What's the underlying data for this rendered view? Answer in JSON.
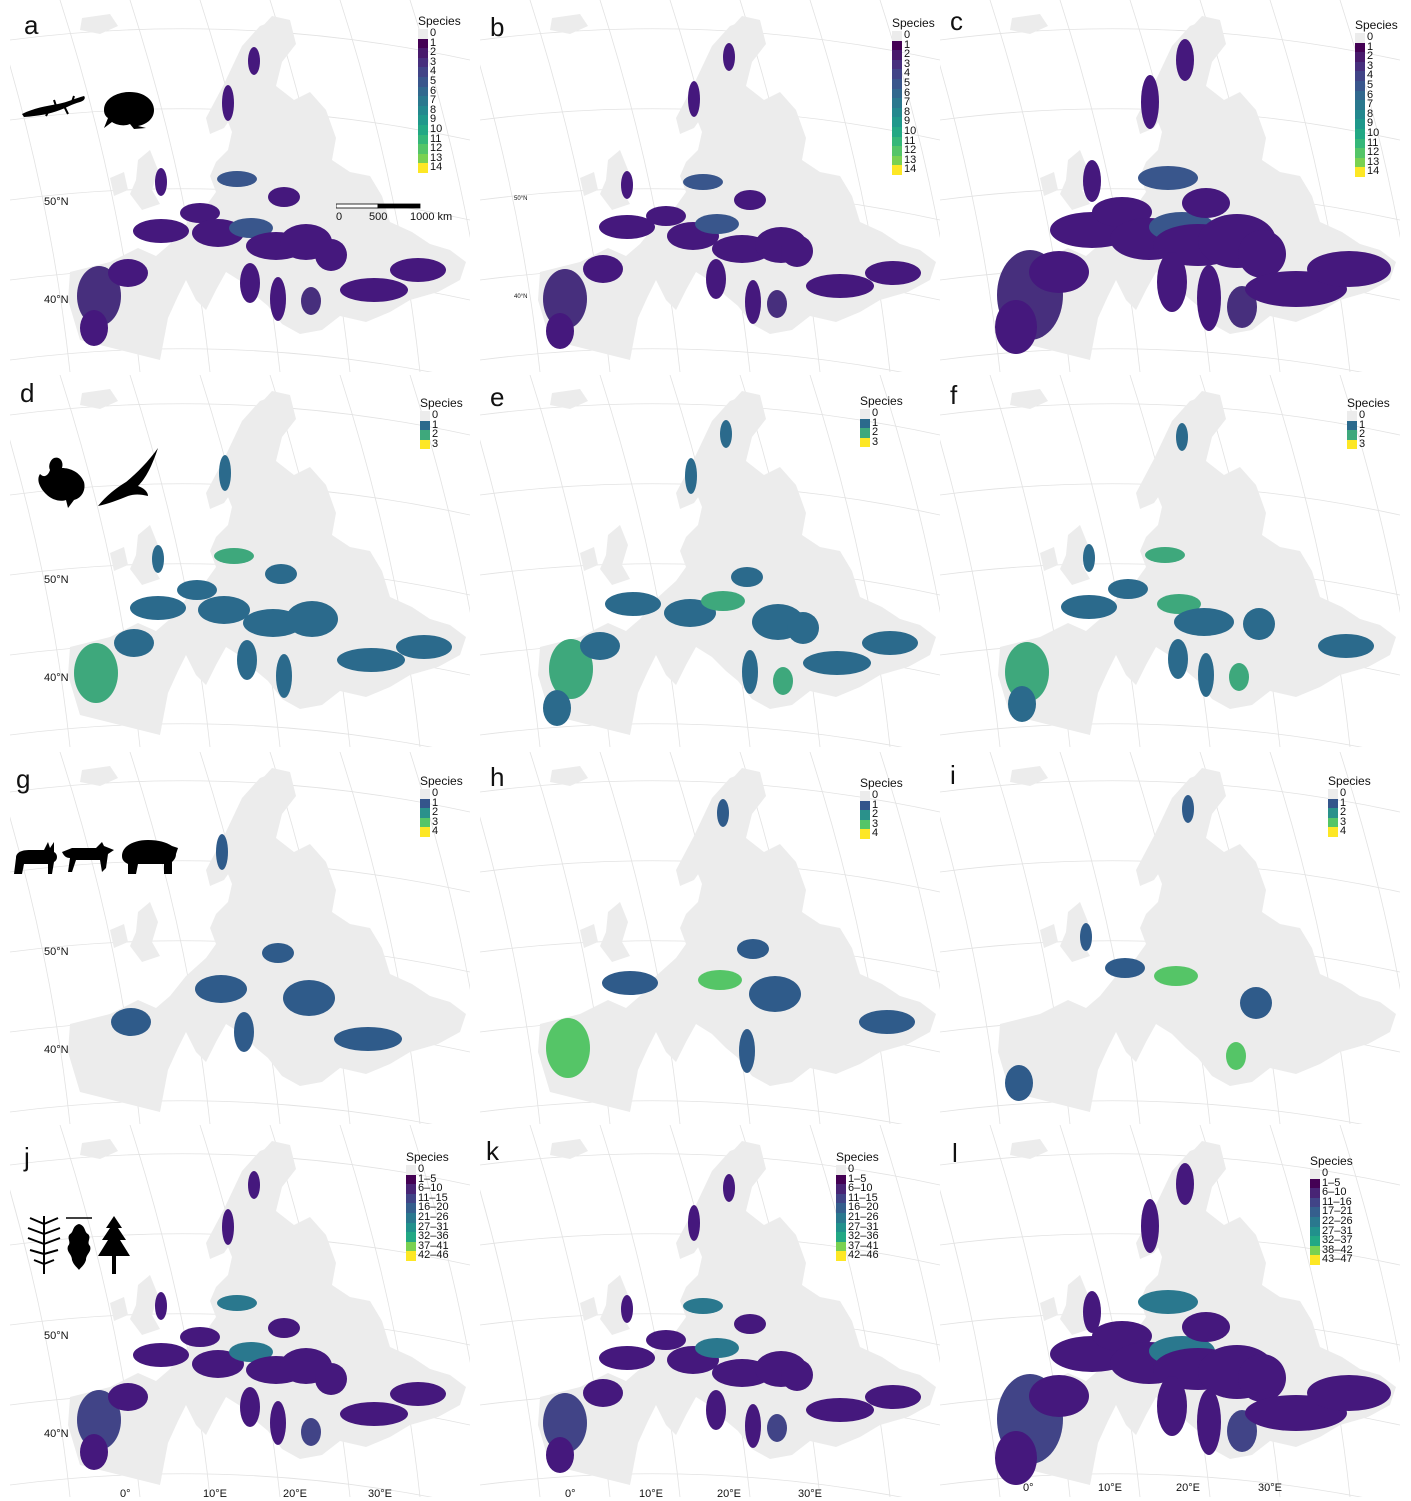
{
  "panels": [
    {
      "letter": "a",
      "legend_title": "Species",
      "legend_scale": "amph",
      "lat_labels": [
        "50°N",
        "40°N"
      ],
      "fill_color": "#45187d"
    },
    {
      "letter": "b",
      "legend_title": "Species",
      "legend_scale": "amph",
      "lat_labels": [
        "50°N",
        "40°N"
      ],
      "fill_color": "#45187d"
    },
    {
      "letter": "c",
      "legend_title": "Species",
      "legend_scale": "amph",
      "lat_labels": [],
      "fill_color": "#45187d"
    },
    {
      "letter": "d",
      "legend_title": "Species",
      "legend_scale": "bird",
      "lat_labels": [
        "50°N",
        "40°N"
      ],
      "fill_color": "#2b6a8c"
    },
    {
      "letter": "e",
      "legend_title": "Species",
      "legend_scale": "bird",
      "lat_labels": [],
      "fill_color": "#2b6a8c"
    },
    {
      "letter": "f",
      "legend_title": "Species",
      "legend_scale": "bird",
      "lat_labels": [],
      "fill_color": "#2b6a8c"
    },
    {
      "letter": "g",
      "legend_title": "Species",
      "legend_scale": "mammal",
      "lat_labels": [
        "50°N",
        "40°N"
      ],
      "fill_color": "#2f5b8a"
    },
    {
      "letter": "h",
      "legend_title": "Species",
      "legend_scale": "mammal",
      "lat_labels": [],
      "fill_color": "#2f5b8a"
    },
    {
      "letter": "i",
      "legend_title": "Species",
      "legend_scale": "mammal",
      "lat_labels": [],
      "fill_color": "#2f5b8a"
    },
    {
      "letter": "j",
      "legend_title": "Species",
      "legend_scale": "tree_j",
      "lat_labels": [
        "50°N",
        "40°N"
      ],
      "fill_color": "#45187d"
    },
    {
      "letter": "k",
      "legend_title": "Species",
      "legend_scale": "tree_j",
      "lat_labels": [],
      "fill_color": "#45187d"
    },
    {
      "letter": "l",
      "legend_title": "Species",
      "legend_scale": "tree_l",
      "lat_labels": [],
      "fill_color": "#45187d"
    }
  ],
  "legend_scales": {
    "amph": {
      "labels": [
        "0",
        "1",
        "2",
        "3",
        "4",
        "5",
        "6",
        "7",
        "8",
        "9",
        "10",
        "11",
        "12",
        "13",
        "14"
      ],
      "colors": [
        "#ececec",
        "#440154",
        "#481a6c",
        "#472f7d",
        "#414487",
        "#39568c",
        "#31688e",
        "#2a788e",
        "#23888e",
        "#1f988b",
        "#22a884",
        "#35b779",
        "#54c568",
        "#7ad151",
        "#fde725"
      ]
    },
    "bird": {
      "labels": [
        "0",
        "1",
        "2",
        "3"
      ],
      "colors": [
        "#ececec",
        "#2b6a8c",
        "#3ea87c",
        "#fde725"
      ]
    },
    "mammal": {
      "labels": [
        "0",
        "1",
        "2",
        "3",
        "4"
      ],
      "colors": [
        "#ececec",
        "#34558b",
        "#2a918b",
        "#55c567",
        "#fde725"
      ]
    },
    "tree_j": {
      "labels": [
        "0",
        "1–5",
        "6–10",
        "11–15",
        "16–20",
        "21–26",
        "27–31",
        "32–36",
        "37–41",
        "42–46"
      ],
      "colors": [
        "#ececec",
        "#440154",
        "#482475",
        "#414487",
        "#355f8d",
        "#2a788e",
        "#21918c",
        "#22a884",
        "#7ad151",
        "#fde725"
      ]
    },
    "tree_l": {
      "labels": [
        "0",
        "1–5",
        "6–10",
        "11–16",
        "17–21",
        "22–26",
        "27–31",
        "32–37",
        "38–42",
        "43–47"
      ],
      "colors": [
        "#ececec",
        "#440154",
        "#482475",
        "#414487",
        "#355f8d",
        "#2a788e",
        "#21918c",
        "#22a884",
        "#7ad151",
        "#fde725"
      ]
    }
  },
  "scalebar": {
    "labels": [
      "0",
      "500",
      "1000 km"
    ]
  },
  "lon_labels": [
    "0°",
    "10°E",
    "20°E",
    "30°E"
  ],
  "silhouettes": [
    "salamander-icon",
    "toad-icon",
    "grouse-icon",
    "eagle-icon",
    "lynx-icon",
    "wolf-icon",
    "bear-icon",
    "fir-branch-icon",
    "oak-leaf-icon",
    "spruce-tree-icon"
  ],
  "colors": {
    "land": "#ececec",
    "graticule": "#e2e2e2",
    "background": "#ffffff"
  }
}
